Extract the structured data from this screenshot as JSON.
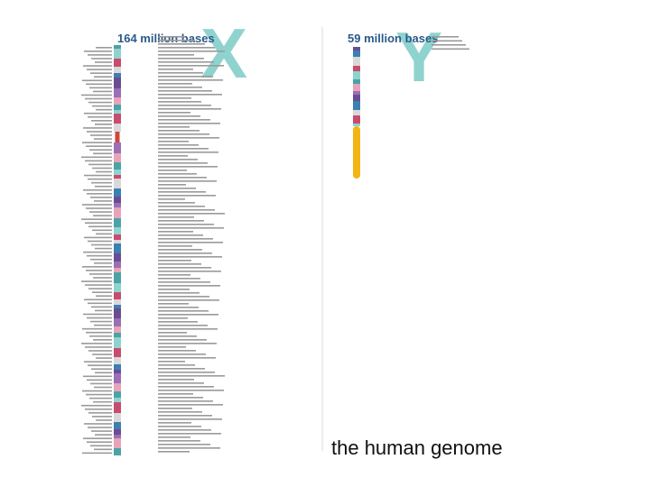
{
  "slide": {
    "x_chromosome": {
      "letter": "X",
      "size_label": "164 million bases"
    },
    "y_chromosome": {
      "letter": "Y",
      "size_label": "59 million bases"
    },
    "caption": "the human genome"
  }
}
